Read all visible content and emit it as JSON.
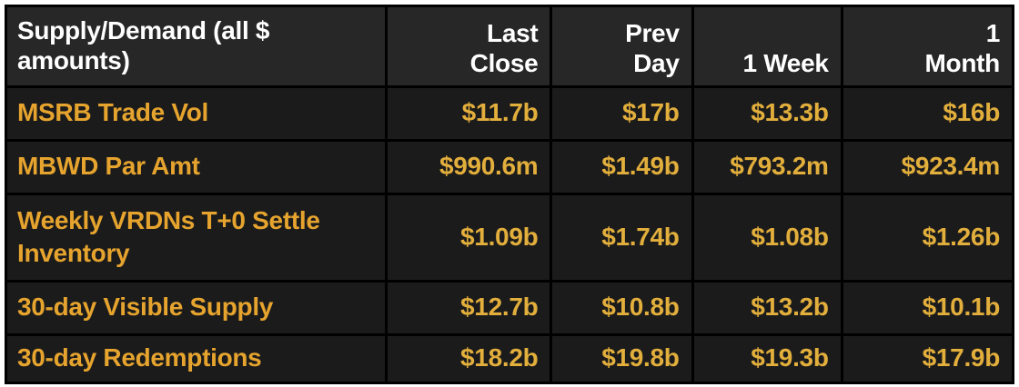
{
  "colors": {
    "page_bg": "#ffffff",
    "table_grid": "#000000",
    "header_bg": "#272727",
    "row_bg": "#1b1b1b",
    "header_text": "#ffffff",
    "label_text": "#e6a42e",
    "value_text": "#e2ae3c"
  },
  "header": {
    "title": "Supply/Demand (all $\namounts)",
    "columns": [
      "Last\nClose",
      "Prev\nDay",
      "1 Week",
      "1\nMonth"
    ]
  },
  "chart_data": {
    "type": "table",
    "title": "Supply/Demand (all $ amounts)",
    "columns": [
      "Last Close",
      "Prev Day",
      "1 Week",
      "1 Month"
    ],
    "rows": [
      {
        "label": "MSRB Trade Vol",
        "values": [
          "$11.7b",
          "$17b",
          "$13.3b",
          "$16b"
        ]
      },
      {
        "label": "MBWD Par Amt",
        "values": [
          "$990.6m",
          "$1.49b",
          "$793.2m",
          "$923.4m"
        ]
      },
      {
        "label": "Weekly VRDNs T+0 Settle Inventory",
        "values": [
          "$1.09b",
          "$1.74b",
          "$1.08b",
          "$1.26b"
        ]
      },
      {
        "label": "30-day Visible Supply",
        "values": [
          "$12.7b",
          "$10.8b",
          "$13.2b",
          "$10.1b"
        ]
      },
      {
        "label": "30-day Redemptions",
        "values": [
          "$18.2b",
          "$19.8b",
          "$19.3b",
          "$17.9b"
        ]
      }
    ]
  }
}
